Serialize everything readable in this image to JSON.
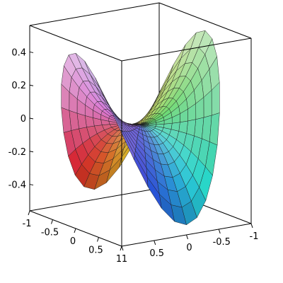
{
  "chart_data": {
    "type": "surface3d",
    "title": "",
    "xlabel": "",
    "ylabel": "",
    "zlabel": "",
    "function": "z = x*y*(1 - x^2 - y^2)^0 approx saddle on unit disk, polar r in [0,1]",
    "domain": "unit disk (polar: r 0..1, theta 0..2pi)",
    "x_range": [
      -1,
      1
    ],
    "y_range": [
      -1,
      1
    ],
    "z_range": [
      -0.56,
      0.56
    ],
    "axes": {
      "x": {
        "ticks": [
          -1,
          -0.5,
          0,
          0.5,
          1
        ],
        "labels": [
          "-1",
          "-0.5",
          "0",
          "0.5",
          "1"
        ]
      },
      "y": {
        "ticks": [
          1,
          0.5,
          0,
          -0.5,
          -1
        ],
        "labels": [
          "1",
          "0.5",
          "0",
          "-0.5",
          "-1"
        ]
      },
      "z": {
        "ticks": [
          0.4,
          0.2,
          0,
          -0.2,
          -0.4
        ],
        "labels": [
          "0.4",
          "0.2",
          "0",
          "-0.2",
          "-0.4"
        ]
      }
    },
    "grid": false,
    "boxed_axes": true,
    "shading": "z-hue gradient (magenta/yellow/cyan/green)",
    "colors": {
      "box": "#000000",
      "mesh": "#1e1e1e",
      "background": "#ffffff"
    }
  }
}
